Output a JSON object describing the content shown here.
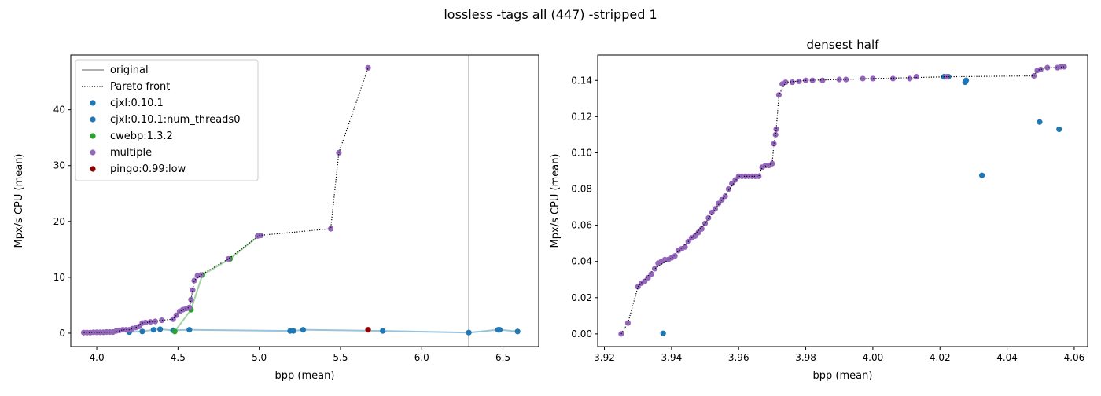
{
  "figure": {
    "suptitle": "lossless -tags all (447) -stripped 1"
  },
  "chart_data": [
    {
      "type": "scatter",
      "title": "",
      "xlabel": "bpp (mean)",
      "ylabel": "Mpx/s CPU (mean)",
      "xlim": [
        3.84,
        6.72
      ],
      "ylim": [
        -2.4,
        49.8
      ],
      "xticks": [
        4.0,
        4.5,
        5.0,
        5.5,
        6.0,
        6.5
      ],
      "yticks": [
        0,
        10,
        20,
        30,
        40
      ],
      "xtick_labels": [
        "4.0",
        "4.5",
        "5.0",
        "5.5",
        "6.0",
        "6.5"
      ],
      "ytick_labels": [
        "0",
        "10",
        "20",
        "30",
        "40"
      ],
      "original_x": 6.29,
      "legend": {
        "position": "upper-left",
        "entries": [
          {
            "label": "original",
            "kind": "line-solid",
            "color": "#808080"
          },
          {
            "label": "Pareto front",
            "kind": "line-dotted",
            "color": "#000000"
          },
          {
            "label": "cjxl:0.10.1",
            "kind": "marker",
            "color": "#1f77b4"
          },
          {
            "label": "cjxl:0.10.1:num_threads0",
            "kind": "marker",
            "color": "#1f77b4"
          },
          {
            "label": "cwebp:1.3.2",
            "kind": "marker",
            "color": "#2ca02c"
          },
          {
            "label": "multiple",
            "kind": "marker",
            "color": "#9467bd"
          },
          {
            "label": "pingo:0.99:low",
            "kind": "marker",
            "color": "#8b0000"
          }
        ]
      },
      "series": [
        {
          "name": "cjxl:0.10.1",
          "color": "#1f77b4",
          "line": true,
          "x": [
            4.2,
            4.28,
            4.35,
            4.39,
            4.47,
            4.57,
            5.19,
            5.21,
            5.27,
            5.76,
            6.29,
            6.47,
            6.48,
            6.59
          ],
          "y": [
            0.2,
            0.3,
            0.6,
            0.7,
            0.5,
            0.6,
            0.4,
            0.4,
            0.6,
            0.4,
            0.1,
            0.6,
            0.6,
            0.3
          ]
        },
        {
          "name": "cwebp:1.3.2",
          "color": "#2ca02c",
          "line": true,
          "x": [
            4.48,
            4.58,
            4.65,
            4.82,
            5.0
          ],
          "y": [
            0.3,
            4.2,
            10.4,
            13.3,
            17.5
          ]
        },
        {
          "name": "multiple",
          "color": "#9467bd",
          "line": false,
          "x": [
            3.92,
            3.94,
            3.96,
            3.98,
            4.0,
            4.02,
            4.04,
            4.06,
            4.08,
            4.1,
            4.12,
            4.14,
            4.16,
            4.18,
            4.2,
            4.22,
            4.24,
            4.26,
            4.28,
            4.3,
            4.33,
            4.36,
            4.4,
            4.47,
            4.49,
            4.51,
            4.53,
            4.55,
            4.57,
            4.58,
            4.59,
            4.6,
            4.62,
            4.64,
            4.81,
            4.99,
            5.01,
            5.44,
            5.49,
            5.67
          ],
          "y": [
            0.1,
            0.1,
            0.1,
            0.15,
            0.15,
            0.15,
            0.15,
            0.2,
            0.2,
            0.2,
            0.4,
            0.5,
            0.6,
            0.6,
            0.6,
            0.8,
            1.0,
            1.2,
            1.8,
            1.9,
            2.0,
            2.1,
            2.3,
            2.5,
            3.2,
            3.9,
            4.2,
            4.4,
            4.6,
            6.0,
            7.7,
            9.4,
            10.3,
            10.4,
            13.3,
            17.4,
            17.5,
            18.7,
            32.3,
            47.5
          ]
        },
        {
          "name": "pingo:0.99:low",
          "color": "#8b0000",
          "line": false,
          "x": [
            5.67
          ],
          "y": [
            0.6
          ]
        }
      ],
      "pareto": {
        "x": [
          3.92,
          4.12,
          4.16,
          4.2,
          4.24,
          4.28,
          4.3,
          4.36,
          4.4,
          4.47,
          4.51,
          4.55,
          4.57,
          4.58,
          4.6,
          4.64,
          4.81,
          5.0,
          5.44,
          5.49,
          5.67
        ],
        "y": [
          0.1,
          0.2,
          0.6,
          0.6,
          1.0,
          1.8,
          1.9,
          2.1,
          2.3,
          2.5,
          3.9,
          4.4,
          4.6,
          6.0,
          9.4,
          10.4,
          13.3,
          17.5,
          18.7,
          32.3,
          47.5
        ]
      }
    },
    {
      "type": "scatter",
      "title": "densest half",
      "xlabel": "bpp (mean)",
      "ylabel": "Mpx/s CPU (mean)",
      "xlim": [
        3.918,
        4.064
      ],
      "ylim": [
        -0.007,
        0.154
      ],
      "xticks": [
        3.92,
        3.94,
        3.96,
        3.98,
        4.0,
        4.02,
        4.04,
        4.06
      ],
      "yticks": [
        0.0,
        0.02,
        0.04,
        0.06,
        0.08,
        0.1,
        0.12,
        0.14
      ],
      "xtick_labels": [
        "3.92",
        "3.94",
        "3.96",
        "3.98",
        "4.00",
        "4.02",
        "4.04",
        "4.06"
      ],
      "ytick_labels": [
        "0.00",
        "0.02",
        "0.04",
        "0.06",
        "0.08",
        "0.10",
        "0.12",
        "0.14"
      ],
      "series": [
        {
          "name": "cjxl:0.10.1",
          "color": "#1f77b4",
          "line": false,
          "x": [
            3.9375,
            4.0212,
            4.0225,
            4.0275,
            4.0278,
            4.0325,
            4.0497,
            4.0555
          ],
          "y": [
            0.0003,
            0.142,
            0.142,
            0.139,
            0.14,
            0.0875,
            0.117,
            0.113
          ]
        },
        {
          "name": "multiple",
          "color": "#9467bd",
          "line": false,
          "x": [
            3.925,
            3.927,
            3.93,
            3.931,
            3.932,
            3.933,
            3.934,
            3.935,
            3.936,
            3.937,
            3.938,
            3.939,
            3.94,
            3.941,
            3.942,
            3.943,
            3.944,
            3.945,
            3.946,
            3.947,
            3.948,
            3.949,
            3.95,
            3.951,
            3.952,
            3.953,
            3.954,
            3.955,
            3.956,
            3.957,
            3.958,
            3.959,
            3.96,
            3.961,
            3.962,
            3.963,
            3.964,
            3.965,
            3.966,
            3.967,
            3.968,
            3.969,
            3.97,
            3.9705,
            3.971,
            3.9712,
            3.972,
            3.973,
            3.974,
            3.976,
            3.978,
            3.98,
            3.982,
            3.985,
            3.99,
            3.992,
            3.997,
            4.0,
            4.006,
            4.011,
            4.013,
            4.022,
            4.048,
            4.049,
            4.05,
            4.052,
            4.055,
            4.056,
            4.057
          ],
          "y": [
            0.0,
            0.006,
            0.026,
            0.028,
            0.029,
            0.031,
            0.033,
            0.036,
            0.039,
            0.04,
            0.041,
            0.041,
            0.042,
            0.043,
            0.046,
            0.047,
            0.048,
            0.051,
            0.053,
            0.054,
            0.056,
            0.058,
            0.061,
            0.064,
            0.067,
            0.069,
            0.072,
            0.074,
            0.076,
            0.08,
            0.083,
            0.085,
            0.087,
            0.087,
            0.087,
            0.087,
            0.087,
            0.087,
            0.087,
            0.092,
            0.093,
            0.093,
            0.094,
            0.105,
            0.11,
            0.113,
            0.132,
            0.138,
            0.139,
            0.139,
            0.1395,
            0.14,
            0.14,
            0.14,
            0.1405,
            0.1405,
            0.141,
            0.141,
            0.141,
            0.141,
            0.142,
            0.142,
            0.1425,
            0.1455,
            0.146,
            0.147,
            0.147,
            0.1475,
            0.1475
          ]
        }
      ],
      "pareto": {
        "x": [
          3.925,
          3.927,
          3.93,
          3.935,
          3.94,
          3.945,
          3.95,
          3.955,
          3.96,
          3.966,
          3.967,
          3.97,
          3.9705,
          3.971,
          3.9712,
          3.972,
          3.974,
          3.98,
          4.0,
          4.022,
          4.048,
          4.049,
          4.05,
          4.052,
          4.055,
          4.057
        ],
        "y": [
          0.0,
          0.006,
          0.026,
          0.036,
          0.042,
          0.051,
          0.061,
          0.074,
          0.087,
          0.087,
          0.092,
          0.094,
          0.105,
          0.11,
          0.113,
          0.132,
          0.139,
          0.14,
          0.141,
          0.142,
          0.1425,
          0.1455,
          0.146,
          0.147,
          0.147,
          0.1475
        ]
      }
    }
  ]
}
